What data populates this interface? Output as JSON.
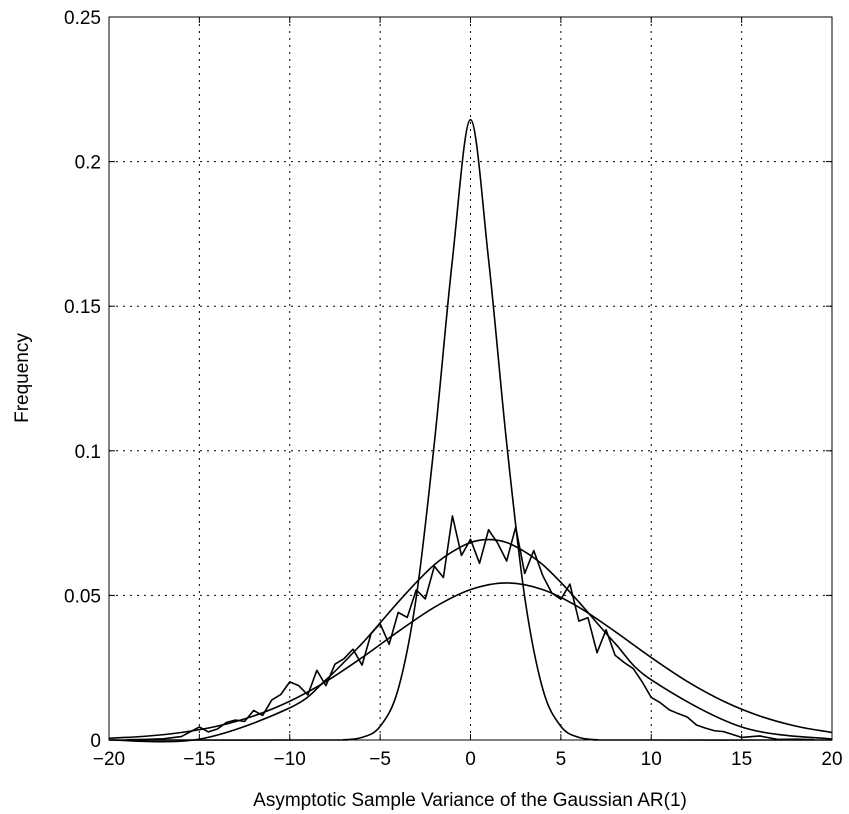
{
  "chart_data": {
    "type": "line",
    "title": "",
    "xlabel": "Asymptotic Sample Variance of the Gaussian AR(1)",
    "ylabel": "Frequency",
    "xlim": [
      -20,
      20
    ],
    "ylim": [
      0,
      0.25
    ],
    "x_ticks": [
      -20,
      -15,
      -10,
      -5,
      0,
      5,
      10,
      15,
      20
    ],
    "x_tick_labels": [
      "−20",
      "−15",
      "−10",
      "−5",
      "0",
      "5",
      "10",
      "15",
      "20"
    ],
    "y_ticks": [
      0,
      0.05,
      0.1,
      0.15,
      0.2,
      0.25
    ],
    "y_tick_labels": [
      "0",
      "0.05",
      "0.1",
      "0.15",
      "0.2",
      "0.25"
    ],
    "grid": true,
    "series": [
      {
        "style": "smooth",
        "x": [
          -20,
          -18,
          -16,
          -14,
          -12,
          -10,
          -8,
          -6,
          -4,
          -2,
          0,
          2,
          4,
          6,
          8,
          10,
          12,
          14,
          16,
          18,
          20
        ],
        "y": [
          0.0006,
          0.0013,
          0.0026,
          0.0048,
          0.0083,
          0.0134,
          0.0202,
          0.0285,
          0.0375,
          0.0459,
          0.052,
          0.0543,
          0.052,
          0.0459,
          0.0375,
          0.0285,
          0.0202,
          0.0134,
          0.0083,
          0.0048,
          0.0026
        ]
      },
      {
        "style": "smooth",
        "x": [
          -20,
          -15,
          -10,
          -8,
          -6,
          -5,
          -4,
          -3,
          -2,
          -1,
          0,
          1,
          2,
          3,
          4,
          5,
          6,
          8,
          10,
          15,
          20
        ],
        "y": [
          0,
          0.0003,
          0.0111,
          0.0208,
          0.0334,
          0.0405,
          0.0477,
          0.0545,
          0.0606,
          0.0651,
          0.0683,
          0.0693,
          0.0683,
          0.0651,
          0.0606,
          0.0545,
          0.0477,
          0.0334,
          0.0208,
          0.0045,
          0.0003
        ]
      },
      {
        "style": "smooth",
        "x": [
          -20,
          -8,
          -7,
          -6,
          -5,
          -4,
          -3,
          -2,
          -1,
          0,
          1,
          2,
          3,
          4,
          5,
          6,
          7,
          8,
          20
        ],
        "y": [
          0,
          0,
          0.0001,
          0.0009,
          0.0047,
          0.0176,
          0.0494,
          0.1027,
          0.1661,
          0.2145,
          0.1661,
          0.1027,
          0.0494,
          0.0176,
          0.0047,
          0.0009,
          0.0001,
          0,
          0
        ]
      },
      {
        "style": "noisy",
        "x": [
          -19,
          -18,
          -17,
          -16,
          -15,
          -14.5,
          -14,
          -13.5,
          -13,
          -12.5,
          -12,
          -11.5,
          -11,
          -10.5,
          -10,
          -9.5,
          -9,
          -8.5,
          -8,
          -7.5,
          -7,
          -6.5,
          -6,
          -5.5,
          -5,
          -4.5,
          -4,
          -3.5,
          -3,
          -2.5,
          -2,
          -1.5,
          -1,
          -0.5,
          0,
          0.5,
          1,
          1.5,
          2,
          2.5,
          3,
          3.5,
          4,
          4.5,
          5,
          5.5,
          6,
          6.5,
          7,
          7.5,
          8,
          8.5,
          9,
          9.5,
          10,
          10.5,
          11,
          11.5,
          12,
          12.5,
          13,
          13.5,
          14,
          15,
          16,
          17,
          18,
          19
        ],
        "y": [
          0.0001,
          0.0002,
          0.0004,
          0.0012,
          0.0045,
          0.0028,
          0.0038,
          0.0061,
          0.0069,
          0.0064,
          0.0102,
          0.0085,
          0.0138,
          0.0157,
          0.0201,
          0.0188,
          0.0156,
          0.0241,
          0.0188,
          0.0262,
          0.0281,
          0.0314,
          0.0259,
          0.0368,
          0.0402,
          0.0331,
          0.0441,
          0.0424,
          0.0519,
          0.0488,
          0.0601,
          0.0562,
          0.0775,
          0.0638,
          0.0694,
          0.0611,
          0.0727,
          0.0681,
          0.0619,
          0.0736,
          0.0576,
          0.0655,
          0.0568,
          0.0508,
          0.0487,
          0.0539,
          0.0411,
          0.0423,
          0.0302,
          0.0381,
          0.0293,
          0.0268,
          0.0247,
          0.0201,
          0.0147,
          0.0129,
          0.0104,
          0.0091,
          0.0079,
          0.0052,
          0.0041,
          0.0032,
          0.0029,
          0.0009,
          0.0014,
          0.0002,
          0.0003,
          0.0001
        ]
      }
    ]
  }
}
